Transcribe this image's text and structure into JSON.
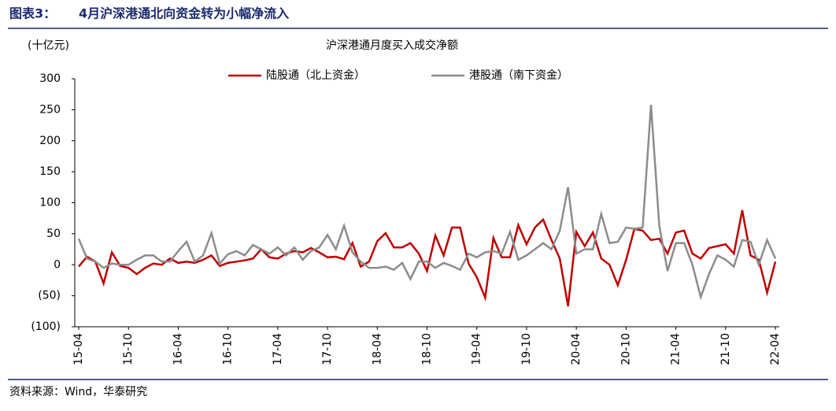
{
  "chart_data": {
    "type": "line",
    "figure_label": "图表3：",
    "title": "4月沪深港通北向资金转为小幅净流入",
    "subtitle": "沪深港通月度买入成交净额",
    "y_unit": "(十亿元)",
    "source": "资料来源：Wind，华泰研究",
    "categories": [
      "15-04",
      null,
      null,
      null,
      null,
      null,
      "15-10",
      null,
      null,
      null,
      null,
      null,
      "16-04",
      null,
      null,
      null,
      null,
      null,
      "16-10",
      null,
      null,
      null,
      null,
      null,
      "17-04",
      null,
      null,
      null,
      null,
      null,
      "17-10",
      null,
      null,
      null,
      null,
      null,
      "18-04",
      null,
      null,
      null,
      null,
      null,
      "18-10",
      null,
      null,
      null,
      null,
      null,
      "19-04",
      null,
      null,
      null,
      null,
      null,
      "19-10",
      null,
      null,
      null,
      null,
      null,
      "20-04",
      null,
      null,
      null,
      null,
      null,
      "20-10",
      null,
      null,
      null,
      null,
      null,
      "21-04",
      null,
      null,
      null,
      null,
      null,
      "21-10",
      null,
      null,
      null,
      null,
      null,
      "22-04"
    ],
    "series": [
      {
        "name": "陆股通（北上资金）",
        "color": "#c00000",
        "values": [
          -3,
          13,
          5,
          -30,
          20,
          -2,
          -5,
          -15,
          -5,
          2,
          0,
          10,
          3,
          5,
          3,
          8,
          15,
          -2,
          3,
          5,
          7,
          10,
          25,
          12,
          10,
          18,
          22,
          20,
          27,
          20,
          12,
          13,
          9,
          35,
          -3,
          5,
          38,
          51,
          28,
          28,
          35,
          18,
          -10,
          47,
          15,
          60,
          60,
          2,
          -20,
          -53,
          43,
          12,
          12,
          64,
          33,
          60,
          73,
          40,
          10,
          -67,
          53,
          30,
          52,
          10,
          0,
          -33,
          8,
          58,
          55,
          40,
          42,
          18,
          52,
          55,
          18,
          10,
          27,
          30,
          33,
          18,
          88,
          15,
          8,
          -45,
          5
        ]
      },
      {
        "name": "港股通（南下资金）",
        "color": "#8c8c8c",
        "values": [
          42,
          10,
          5,
          -5,
          2,
          0,
          0,
          8,
          15,
          15,
          5,
          5,
          22,
          37,
          5,
          15,
          51,
          2,
          17,
          22,
          15,
          32,
          25,
          18,
          28,
          15,
          28,
          8,
          22,
          28,
          48,
          25,
          63,
          20,
          5,
          -5,
          -5,
          -3,
          -8,
          3,
          -23,
          5,
          5,
          -5,
          3,
          -2,
          -8,
          18,
          12,
          20,
          22,
          18,
          53,
          8,
          15,
          25,
          35,
          25,
          55,
          125,
          18,
          25,
          25,
          82,
          35,
          37,
          60,
          58,
          60,
          258,
          63,
          -10,
          35,
          35,
          0,
          -52,
          -15,
          15,
          8,
          -3,
          40,
          37,
          0,
          40,
          10
        ]
      }
    ],
    "ylim": [
      -100,
      300
    ],
    "yticks": [
      {
        "value": -100,
        "label": "(100)"
      },
      {
        "value": -50,
        "label": "(50)"
      },
      0,
      50,
      100,
      150,
      200,
      250,
      300
    ],
    "legend": "top",
    "grid": false
  }
}
